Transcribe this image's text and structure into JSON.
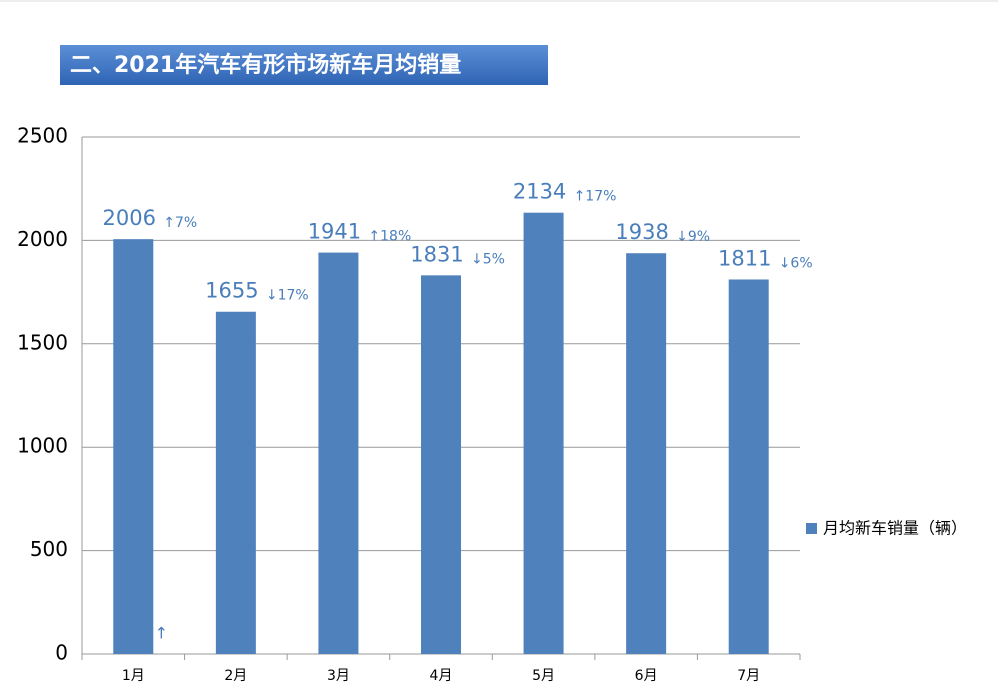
{
  "chart_data": {
    "type": "bar",
    "title": "二、2021年汽车有形市场新车月均销量",
    "categories": [
      "1月",
      "2月",
      "3月",
      "4月",
      "5月",
      "6月",
      "7月"
    ],
    "series": [
      {
        "name": "月均新车销量（辆）",
        "color": "#4f81bd",
        "values": [
          2006,
          1655,
          1941,
          1831,
          2134,
          1938,
          1811
        ]
      }
    ],
    "change_labels": [
      "↑7%",
      "↓17%",
      "↑18%",
      "↓5%",
      "↑17%",
      "↓9%",
      "↓6%"
    ],
    "annotation": "↑",
    "ylim": [
      0,
      2500
    ],
    "yticks": [
      0,
      500,
      1000,
      1500,
      2000,
      2500
    ],
    "grid": true,
    "legend": "right"
  }
}
